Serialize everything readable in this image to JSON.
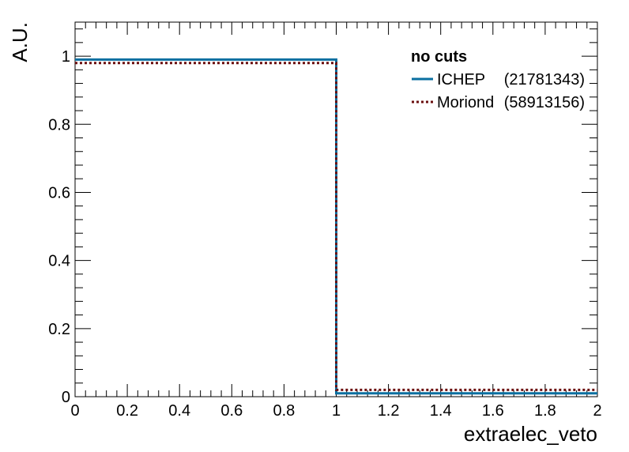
{
  "chart_data": {
    "type": "line",
    "step": true,
    "xlabel": "extraelec_veto",
    "ylabel": "A.U.",
    "xlim": [
      0,
      2
    ],
    "ylim": [
      0,
      1.1
    ],
    "x_ticks": [
      "0",
      "0.2",
      "0.4",
      "0.6",
      "0.8",
      "1",
      "1.2",
      "1.4",
      "1.6",
      "1.8",
      "2"
    ],
    "y_ticks": [
      "0",
      "0.2",
      "0.4",
      "0.6",
      "0.8",
      "1"
    ],
    "bin_edges": [
      0,
      1,
      2
    ],
    "legend": {
      "header": "no cuts",
      "position": "top-right"
    },
    "series": [
      {
        "name": "ICHEP",
        "count_label": "(21781343)",
        "values": [
          0.99,
          0.01
        ],
        "color": "#0a6fa0",
        "style": "solid"
      },
      {
        "name": "Moriond",
        "count_label": "(58913156)",
        "values": [
          0.98,
          0.02
        ],
        "color": "#6b0f0f",
        "style": "dotted"
      }
    ]
  }
}
